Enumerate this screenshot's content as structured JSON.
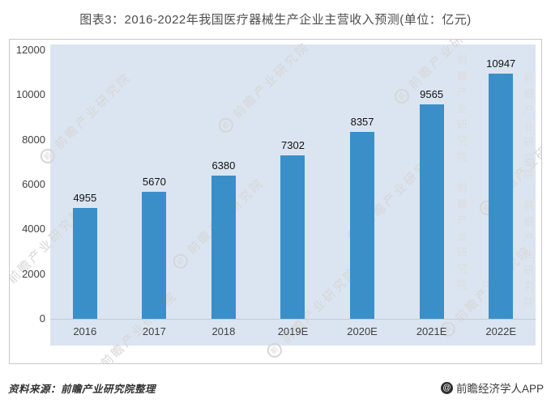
{
  "title": "图表3：2016-2022年我国医疗器械生产企业主营收入预测(单位：亿元)",
  "chart_data": {
    "type": "bar",
    "title": "2016-2022年我国医疗器械生产企业主营收入预测",
    "unit": "亿元",
    "categories": [
      "2016",
      "2017",
      "2018",
      "2019E",
      "2020E",
      "2021E",
      "2022E"
    ],
    "values": [
      4955,
      5670,
      6380,
      7302,
      8357,
      9565,
      10947
    ],
    "xlabel": "",
    "ylabel": "",
    "ylim": [
      0,
      12000
    ],
    "yticks": [
      0,
      2000,
      4000,
      6000,
      8000,
      10000,
      12000
    ],
    "grid": false,
    "legend_position": "none",
    "bar_color": "#3a8fc9",
    "plot_bg_color": "#dbe5f1"
  },
  "watermark": {
    "text": "前瞻产业研究院",
    "logo_char": "前"
  },
  "footer": {
    "source": "资料来源：前瞻产业研究院整理",
    "brand_logo_char": "@",
    "brand": "前瞻经济学人APP"
  }
}
